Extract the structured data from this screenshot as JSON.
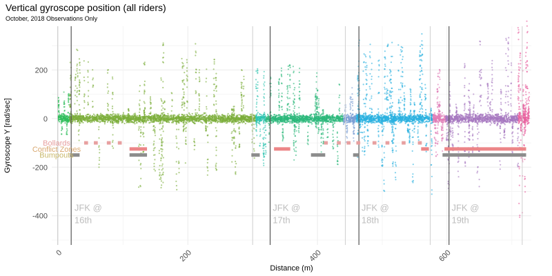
{
  "chart_data": {
    "type": "scatter",
    "title": "Vertical gyroscope position (all riders)",
    "subtitle": "October, 2018 Observations Only",
    "xlabel": "Distance (m)",
    "ylabel": "Gyroscope Y [rad/sec]",
    "xlim": [
      -10,
      730
    ],
    "ylim": [
      -520,
      380
    ],
    "x_ticks": [
      0,
      200,
      400,
      600
    ],
    "y_ticks": [
      200,
      0,
      -200,
      -400
    ],
    "grid": true,
    "segments": [
      {
        "color": "#2dbd5a",
        "x_range": [
          0,
          18
        ],
        "spread": 30,
        "amp": 120,
        "spikes": 6
      },
      {
        "color": "#7cae3b",
        "x_range": [
          18,
          305
        ],
        "spread": 28,
        "amp": 300,
        "spikes": 60
      },
      {
        "color": "#2ec4b0",
        "x_range": [
          305,
          320
        ],
        "spread": 30,
        "amp": 200,
        "spikes": 8
      },
      {
        "color": "#2bb87a",
        "x_range": [
          320,
          440
        ],
        "spread": 28,
        "amp": 190,
        "spikes": 30
      },
      {
        "color": "#7b9fd4",
        "x_range": [
          440,
          460
        ],
        "spread": 30,
        "amp": 120,
        "spikes": 6
      },
      {
        "color": "#2ab0e0",
        "x_range": [
          460,
          578
        ],
        "spread": 30,
        "amp": 340,
        "spikes": 50
      },
      {
        "color": "#e07bb5",
        "x_range": [
          578,
          598
        ],
        "spread": 35,
        "amp": 220,
        "spikes": 10
      },
      {
        "color": "#a678c0",
        "x_range": [
          598,
          710
        ],
        "spread": 30,
        "amp": 300,
        "spikes": 35
      },
      {
        "color": "#e8609e",
        "x_range": [
          710,
          727
        ],
        "spread": 40,
        "amp": 430,
        "spikes": 20
      }
    ],
    "vlines_light": [
      -1,
      300,
      443,
      574,
      716
    ],
    "vlines_dark": [
      20,
      327,
      464,
      603
    ],
    "street_labels": [
      {
        "x": 25,
        "lines": [
          "JFK @",
          "16th"
        ]
      },
      {
        "x": 331,
        "lines": [
          "JFK @",
          "17th"
        ]
      },
      {
        "x": 468,
        "lines": [
          "JFK @",
          "18th"
        ]
      },
      {
        "x": 607,
        "lines": [
          "JFK @",
          "19th"
        ]
      }
    ],
    "features": [
      {
        "name": "Bollards",
        "color": "#e8a0a0",
        "y": -100,
        "dashed": true,
        "ranges": [
          [
            40,
            46
          ],
          [
            55,
            61
          ],
          [
            75,
            81
          ],
          [
            92,
            98
          ],
          [
            410,
            416
          ],
          [
            430,
            436
          ],
          [
            445,
            451
          ],
          [
            460,
            466
          ],
          [
            485,
            491
          ],
          [
            505,
            511
          ],
          [
            530,
            536
          ],
          [
            555,
            561
          ]
        ]
      },
      {
        "name": "Conflict Zones",
        "color": "#ec8587",
        "y": -125,
        "dashed": false,
        "ranges": [
          [
            110,
            137
          ],
          [
            333,
            358
          ],
          [
            560,
            572
          ],
          [
            596,
            722
          ]
        ]
      },
      {
        "name": "Bumpouts",
        "color": "#8c8c8c",
        "y": -150,
        "dashed": false,
        "ranges": [
          [
            18,
            33
          ],
          [
            110,
            137
          ],
          [
            298,
            311
          ],
          [
            390,
            412
          ],
          [
            455,
            464
          ],
          [
            593,
            722
          ]
        ]
      }
    ],
    "feature_label_colors": {
      "Bollards": "#e8a0a0",
      "Conflict Zones": "#d9a870",
      "Bumpouts": "#c9b86a"
    }
  }
}
